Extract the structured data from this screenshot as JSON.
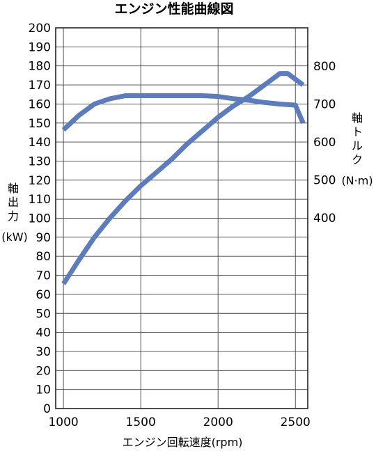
{
  "chart_data": {
    "type": "line",
    "title": "エンジン性能曲線図",
    "xlabel": "エンジン回転速度(rpm)",
    "xlim": [
      950,
      2580
    ],
    "x_ticks": [
      1000,
      1500,
      2000,
      2500
    ],
    "left_axis": {
      "label_chars": [
        "軸",
        "出",
        "力"
      ],
      "label_unit": "(kW)",
      "ylim": [
        0,
        200
      ],
      "ticks": [
        0,
        10,
        20,
        30,
        40,
        50,
        60,
        70,
        80,
        90,
        100,
        110,
        120,
        130,
        140,
        150,
        160,
        170,
        180,
        190,
        200
      ]
    },
    "right_axis": {
      "label_chars": [
        "軸",
        "ト",
        "ル",
        "ク"
      ],
      "label_unit": "(N·m)",
      "ticks": [
        400,
        500,
        600,
        700,
        800
      ]
    },
    "series": [
      {
        "axis": "left",
        "x": [
          1000,
          1100,
          1200,
          1300,
          1400,
          1500,
          1600,
          1700,
          1800,
          1900,
          2000,
          2100,
          2200,
          2300,
          2400,
          2450,
          2550
        ],
        "y": [
          65.5,
          78,
          90,
          100,
          109,
          117,
          124,
          131,
          139,
          146,
          153,
          159,
          164,
          170,
          176,
          176,
          170
        ]
      },
      {
        "axis": "right",
        "x": [
          1000,
          1100,
          1200,
          1300,
          1400,
          1500,
          1600,
          1700,
          1800,
          1900,
          2000,
          2100,
          2200,
          2300,
          2400,
          2500,
          2550
        ],
        "y": [
          632,
          670,
          700,
          714,
          722,
          722,
          722,
          722,
          722,
          722,
          720,
          714,
          710,
          704,
          700,
          697,
          650
        ]
      }
    ],
    "line_color": "#5b7dc0",
    "grid": true
  }
}
